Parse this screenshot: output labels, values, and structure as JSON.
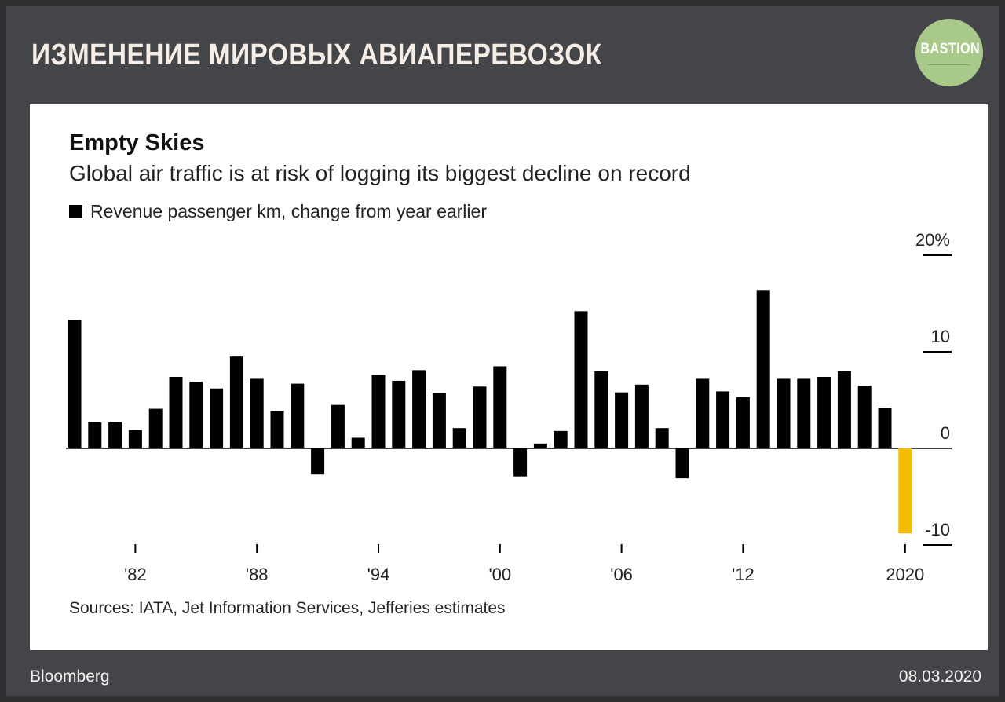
{
  "header": {
    "title": "ИЗМЕНЕНИЕ МИРОВЫХ АВИАПЕРЕВОЗОК",
    "logo_text": "BASTION"
  },
  "footer": {
    "source_brand": "Bloomberg",
    "date": "08.03.2020"
  },
  "colors": {
    "background": "#444548",
    "bar": "#000000",
    "highlight": "#f5bd00",
    "logo": "#a9c98a"
  },
  "chart_data": {
    "type": "bar",
    "title": "Empty Skies",
    "subtitle": "Global air traffic is at risk of logging its biggest decline on record",
    "legend": [
      {
        "label": "Revenue passenger km, change from year earlier",
        "color": "#000000"
      }
    ],
    "source": "Sources: IATA, Jet Information Services, Jefferies estimates",
    "x": [
      1979,
      1980,
      1981,
      1982,
      1983,
      1984,
      1985,
      1986,
      1987,
      1988,
      1989,
      1990,
      1991,
      1992,
      1993,
      1994,
      1995,
      1996,
      1997,
      1998,
      1999,
      2000,
      2001,
      2002,
      2003,
      2004,
      2005,
      2006,
      2007,
      2008,
      2009,
      2010,
      2011,
      2012,
      2013,
      2014,
      2015,
      2016,
      2017,
      2018,
      2019,
      2020
    ],
    "values": [
      13.3,
      2.7,
      2.7,
      1.9,
      4.1,
      7.4,
      6.9,
      6.2,
      9.5,
      7.2,
      3.9,
      6.7,
      -2.7,
      4.5,
      1.1,
      7.6,
      7.0,
      8.1,
      5.7,
      2.1,
      6.4,
      8.5,
      -2.9,
      0.5,
      1.8,
      14.2,
      8.0,
      5.8,
      6.6,
      2.1,
      -3.1,
      7.2,
      5.9,
      5.3,
      16.4,
      7.2,
      7.2,
      7.4,
      8.0,
      6.5,
      4.2,
      -8.8
    ],
    "highlight_index": 41,
    "x_tick_labels": [
      {
        "year": 1982,
        "label": "'82"
      },
      {
        "year": 1988,
        "label": "'88"
      },
      {
        "year": 1994,
        "label": "'94"
      },
      {
        "year": 2000,
        "label": "'00"
      },
      {
        "year": 2006,
        "label": "'06"
      },
      {
        "year": 2012,
        "label": "'12"
      },
      {
        "year": 2020,
        "label": "2020"
      }
    ],
    "y_ticks": [
      {
        "value": 20,
        "label": "20%"
      },
      {
        "value": 10,
        "label": "10"
      },
      {
        "value": 0,
        "label": "0"
      },
      {
        "value": -10,
        "label": "-10"
      }
    ],
    "ylim": [
      -10,
      20
    ],
    "xlabel": "",
    "ylabel": ""
  }
}
